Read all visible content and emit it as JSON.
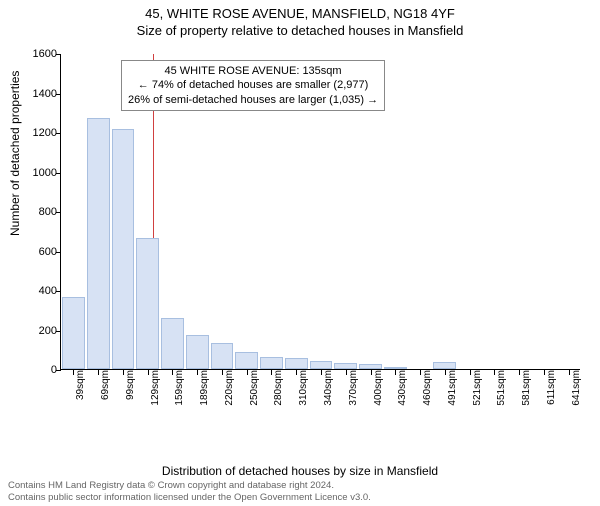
{
  "titles": {
    "line1": "45, WHITE ROSE AVENUE, MANSFIELD, NG18 4YF",
    "line2": "Size of property relative to detached houses in Mansfield"
  },
  "axes": {
    "ylabel": "Number of detached properties",
    "xlabel": "Distribution of detached houses by size in Mansfield",
    "ylim_max": 1600,
    "ytick_step": 200,
    "yticks": [
      "0",
      "200",
      "400",
      "600",
      "800",
      "1000",
      "1200",
      "1400",
      "1600"
    ]
  },
  "style": {
    "bar_fill": "#d7e2f4",
    "bar_stroke": "#a8bfe0",
    "refline_color": "#d04040",
    "axis_color": "#000000",
    "title_fontsize": 13,
    "label_fontsize": 12,
    "tick_fontsize": 11,
    "footer_color": "#666666"
  },
  "reference": {
    "value_sqm": 135,
    "x_min": 39,
    "x_step": 30
  },
  "annotation": {
    "line1": "45 WHITE ROSE AVENUE: 135sqm",
    "line2": "← 74% of detached houses are smaller (2,977)",
    "line3": "26% of semi-detached houses are larger (1,035) →"
  },
  "bars": {
    "categories": [
      "39sqm",
      "69sqm",
      "99sqm",
      "129sqm",
      "159sqm",
      "189sqm",
      "220sqm",
      "250sqm",
      "280sqm",
      "310sqm",
      "340sqm",
      "370sqm",
      "400sqm",
      "430sqm",
      "460sqm",
      "491sqm",
      "521sqm",
      "551sqm",
      "581sqm",
      "611sqm",
      "641sqm"
    ],
    "values": [
      365,
      1270,
      1215,
      665,
      260,
      170,
      130,
      85,
      60,
      55,
      40,
      30,
      25,
      10,
      0,
      35,
      0,
      0,
      0,
      0,
      0
    ]
  },
  "footer": {
    "line1": "Contains HM Land Registry data © Crown copyright and database right 2024.",
    "line2": "Contains public sector information licensed under the Open Government Licence v3.0."
  }
}
